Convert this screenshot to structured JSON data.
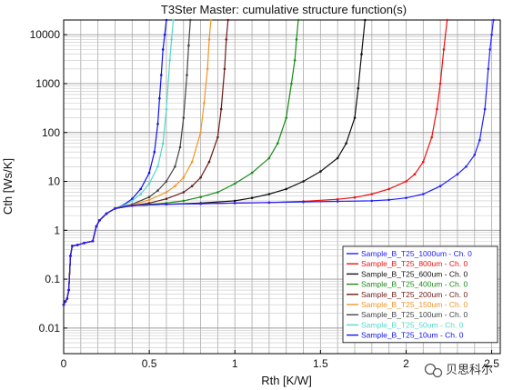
{
  "chart_data": {
    "type": "line",
    "title": "T3Ster Master: cumulative structure function(s)",
    "xlabel": "Rth  [K/W]",
    "ylabel": "Cth  [Ws/K]",
    "xlim": [
      0,
      2.55
    ],
    "ylim": [
      0.003,
      20000
    ],
    "yscale": "log",
    "grid": true,
    "legend_placement": "bottom-right",
    "x_ticks": [
      {
        "value": 0,
        "label": "0"
      },
      {
        "value": 0.5,
        "label": "0.5"
      },
      {
        "value": 1,
        "label": "1"
      },
      {
        "value": 1.5,
        "label": "1.5"
      },
      {
        "value": 2,
        "label": "2"
      },
      {
        "value": 2.5,
        "label": "2.5"
      }
    ],
    "y_ticks": [
      {
        "value": 0.01,
        "label": "0.01"
      },
      {
        "value": 0.1,
        "label": "0.1"
      },
      {
        "value": 1,
        "label": "1"
      },
      {
        "value": 10,
        "label": "10"
      },
      {
        "value": 100,
        "label": "100"
      },
      {
        "value": 1000,
        "label": "1000"
      },
      {
        "value": 10000,
        "label": "10000"
      }
    ],
    "series": [
      {
        "name": "Sample_B_T25_1000um - Ch. 0",
        "color": "#2020ff",
        "x": [
          0,
          0.01,
          0.02,
          0.03,
          0.04,
          0.05,
          0.08,
          0.12,
          0.17,
          0.19,
          0.21,
          0.25,
          0.3,
          0.4,
          0.6,
          0.8,
          1.0,
          1.2,
          1.4,
          1.6,
          1.8,
          1.9,
          2.0,
          2.1,
          2.2,
          2.3,
          2.35,
          2.4,
          2.43,
          2.46,
          2.48,
          2.49,
          2.5,
          2.51
        ],
        "y": [
          0.03,
          0.035,
          0.04,
          0.06,
          0.3,
          0.48,
          0.5,
          0.55,
          0.6,
          1.2,
          1.6,
          2.2,
          2.8,
          3.2,
          3.4,
          3.5,
          3.6,
          3.7,
          3.8,
          3.9,
          4.0,
          4.2,
          4.6,
          5.5,
          8,
          14,
          20,
          35,
          70,
          300,
          2000,
          5000,
          10000,
          20000
        ]
      },
      {
        "name": "Sample_B_T25_800um - Ch. 0",
        "color": "#ee1111",
        "x": [
          0,
          0.01,
          0.02,
          0.03,
          0.04,
          0.05,
          0.08,
          0.12,
          0.17,
          0.19,
          0.21,
          0.25,
          0.3,
          0.4,
          0.6,
          0.8,
          1.0,
          1.2,
          1.4,
          1.6,
          1.7,
          1.8,
          1.9,
          2.0,
          2.05,
          2.1,
          2.15,
          2.18,
          2.2,
          2.22,
          2.24
        ],
        "y": [
          0.03,
          0.035,
          0.04,
          0.06,
          0.3,
          0.48,
          0.5,
          0.55,
          0.6,
          1.2,
          1.6,
          2.2,
          2.8,
          3.2,
          3.4,
          3.5,
          3.6,
          3.7,
          3.9,
          4.3,
          4.7,
          5.5,
          7,
          10,
          14,
          25,
          80,
          300,
          1000,
          5000,
          20000
        ]
      },
      {
        "name": "Sample_B_T25_600um - Ch. 0",
        "color": "#111111",
        "x": [
          0,
          0.01,
          0.02,
          0.03,
          0.04,
          0.05,
          0.08,
          0.12,
          0.17,
          0.19,
          0.21,
          0.25,
          0.3,
          0.4,
          0.6,
          0.8,
          1.0,
          1.1,
          1.2,
          1.3,
          1.4,
          1.5,
          1.6,
          1.65,
          1.7,
          1.72,
          1.74,
          1.76
        ],
        "y": [
          0.03,
          0.035,
          0.04,
          0.06,
          0.3,
          0.48,
          0.5,
          0.55,
          0.6,
          1.2,
          1.6,
          2.2,
          2.8,
          3.2,
          3.4,
          3.6,
          4.0,
          4.6,
          5.5,
          7,
          10,
          16,
          30,
          60,
          200,
          800,
          4000,
          20000
        ]
      },
      {
        "name": "Sample_B_T25_400um - Ch. 0",
        "color": "#1a8a1a",
        "x": [
          0,
          0.01,
          0.02,
          0.03,
          0.04,
          0.05,
          0.08,
          0.12,
          0.17,
          0.19,
          0.21,
          0.25,
          0.3,
          0.4,
          0.6,
          0.7,
          0.8,
          0.9,
          1.0,
          1.1,
          1.2,
          1.25,
          1.3,
          1.33,
          1.35,
          1.36,
          1.37
        ],
        "y": [
          0.03,
          0.035,
          0.04,
          0.06,
          0.3,
          0.48,
          0.5,
          0.55,
          0.6,
          1.2,
          1.6,
          2.2,
          2.8,
          3.2,
          3.6,
          4.0,
          4.8,
          6,
          9,
          15,
          30,
          60,
          200,
          1000,
          3000,
          8000,
          20000
        ]
      },
      {
        "name": "Sample_B_T25_200um - Ch. 0",
        "color": "#6b1a1a",
        "x": [
          0,
          0.01,
          0.02,
          0.03,
          0.04,
          0.05,
          0.08,
          0.12,
          0.17,
          0.19,
          0.21,
          0.25,
          0.3,
          0.4,
          0.5,
          0.6,
          0.7,
          0.75,
          0.8,
          0.85,
          0.9,
          0.92,
          0.94,
          0.95,
          0.96
        ],
        "y": [
          0.03,
          0.035,
          0.04,
          0.06,
          0.3,
          0.48,
          0.5,
          0.55,
          0.6,
          1.2,
          1.6,
          2.2,
          2.8,
          3.2,
          3.6,
          4.4,
          6,
          8,
          12,
          25,
          80,
          300,
          2000,
          8000,
          20000
        ]
      },
      {
        "name": "Sample_B_T25_150um - Ch. 0",
        "color": "#f0962a",
        "x": [
          0,
          0.01,
          0.02,
          0.03,
          0.04,
          0.05,
          0.08,
          0.12,
          0.17,
          0.19,
          0.21,
          0.25,
          0.3,
          0.4,
          0.5,
          0.6,
          0.65,
          0.7,
          0.75,
          0.8,
          0.82,
          0.84,
          0.85,
          0.86
        ],
        "y": [
          0.03,
          0.035,
          0.04,
          0.06,
          0.3,
          0.48,
          0.5,
          0.55,
          0.6,
          1.2,
          1.6,
          2.2,
          2.8,
          3.3,
          4.2,
          6,
          8,
          12,
          25,
          100,
          400,
          2000,
          8000,
          20000
        ]
      },
      {
        "name": "Sample_B_T25_100um - Ch. 0",
        "color": "#444444",
        "x": [
          0,
          0.01,
          0.02,
          0.03,
          0.04,
          0.05,
          0.08,
          0.12,
          0.17,
          0.19,
          0.21,
          0.25,
          0.3,
          0.4,
          0.5,
          0.55,
          0.6,
          0.65,
          0.68,
          0.7,
          0.72,
          0.73,
          0.74
        ],
        "y": [
          0.03,
          0.035,
          0.04,
          0.06,
          0.3,
          0.48,
          0.5,
          0.55,
          0.6,
          1.2,
          1.6,
          2.2,
          2.8,
          3.4,
          4.8,
          6.5,
          10,
          20,
          50,
          200,
          1500,
          6000,
          20000
        ]
      },
      {
        "name": "Sample_B_T25_50um - Ch. 0",
        "color": "#55d8c8",
        "x": [
          0,
          0.01,
          0.02,
          0.03,
          0.04,
          0.05,
          0.08,
          0.12,
          0.17,
          0.19,
          0.21,
          0.25,
          0.3,
          0.35,
          0.4,
          0.45,
          0.5,
          0.55,
          0.58,
          0.6,
          0.62,
          0.63,
          0.64
        ],
        "y": [
          0.03,
          0.035,
          0.04,
          0.06,
          0.3,
          0.48,
          0.5,
          0.55,
          0.6,
          1.2,
          1.6,
          2.2,
          2.8,
          3.2,
          4.0,
          5.5,
          9,
          20,
          60,
          300,
          3000,
          8000,
          20000
        ]
      },
      {
        "name": "Sample_B_T25_10um - Ch. 0",
        "color": "#1010ee",
        "x": [
          0,
          0.01,
          0.02,
          0.03,
          0.04,
          0.05,
          0.08,
          0.12,
          0.17,
          0.19,
          0.21,
          0.25,
          0.3,
          0.35,
          0.4,
          0.45,
          0.5,
          0.53,
          0.55,
          0.56,
          0.57,
          0.58,
          0.59,
          0.6
        ],
        "y": [
          0.03,
          0.035,
          0.04,
          0.06,
          0.3,
          0.48,
          0.5,
          0.55,
          0.6,
          1.2,
          1.6,
          2.2,
          2.8,
          3.3,
          4.4,
          7,
          15,
          40,
          150,
          500,
          1500,
          5000,
          10000,
          20000
        ]
      }
    ]
  },
  "watermark": {
    "text": "贝思科尔",
    "icon": "wechat-icon"
  }
}
